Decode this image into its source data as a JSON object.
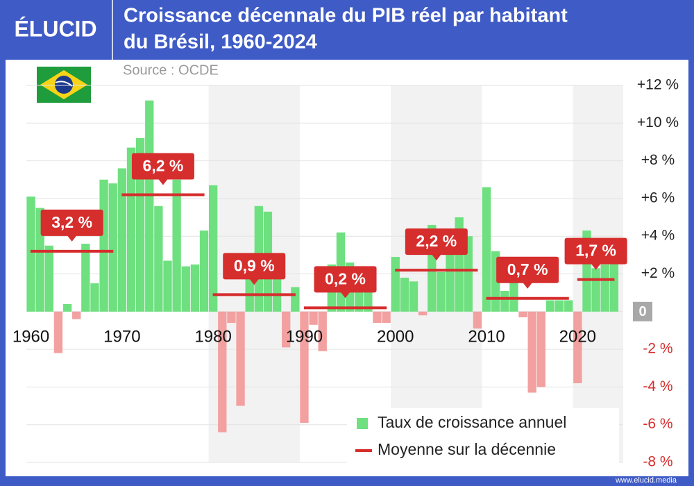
{
  "brand": "ÉLUCID",
  "footer": "www.elucid.media",
  "chart_data": {
    "type": "bar",
    "title": "Croissance décennale du PIB réel par habitant du Brésil, 1960-2024",
    "title_lines": [
      "Croissance décennale du PIB réel par habitant",
      "du Brésil, 1960-2024"
    ],
    "subtitle": "Source : OCDE",
    "xlim": [
      1959.5,
      2025
    ],
    "xticks": [
      1960,
      1970,
      1980,
      1990,
      2000,
      2010,
      2020
    ],
    "ylim": [
      -8,
      12
    ],
    "yticks": [
      {
        "value": -8,
        "label": "-8 %"
      },
      {
        "value": -6,
        "label": "-6 %"
      },
      {
        "value": -4,
        "label": "-4 %"
      },
      {
        "value": -2,
        "label": "-2 %"
      },
      0,
      {
        "value": 2,
        "label": "+2 %"
      },
      {
        "value": 4,
        "label": "+4 %"
      },
      {
        "value": 6,
        "label": "+6 %"
      },
      {
        "value": 8,
        "label": "+8 %"
      },
      {
        "value": 10,
        "label": "+10 %"
      },
      {
        "value": 12,
        "label": "+12 %"
      }
    ],
    "grid": true,
    "legend": "lower right",
    "series": [
      {
        "name": "Taux de croissance annuel",
        "color": "#6ee07f",
        "negative_color": "#f2a0a0",
        "x": [
          1960,
          1961,
          1962,
          1963,
          1964,
          1965,
          1966,
          1967,
          1968,
          1969,
          1970,
          1971,
          1972,
          1973,
          1974,
          1975,
          1976,
          1977,
          1978,
          1979,
          1980,
          1981,
          1982,
          1983,
          1984,
          1985,
          1986,
          1987,
          1988,
          1989,
          1990,
          1991,
          1992,
          1993,
          1994,
          1995,
          1996,
          1997,
          1998,
          1999,
          2000,
          2001,
          2002,
          2003,
          2004,
          2005,
          2006,
          2007,
          2008,
          2009,
          2010,
          2011,
          2012,
          2013,
          2014,
          2015,
          2016,
          2017,
          2018,
          2019,
          2020,
          2021,
          2022,
          2023,
          2024
        ],
        "values": [
          6.1,
          5.5,
          3.5,
          -2.2,
          0.4,
          -0.4,
          3.6,
          1.5,
          7.0,
          6.8,
          7.6,
          8.7,
          9.2,
          11.2,
          5.6,
          2.7,
          7.0,
          2.4,
          2.5,
          4.3,
          6.7,
          -6.4,
          -0.6,
          -5.0,
          3.1,
          5.6,
          5.3,
          2.1,
          -1.9,
          1.3,
          -5.9,
          -0.7,
          -2.1,
          2.5,
          4.2,
          2.6,
          1.4,
          1.9,
          -0.6,
          -0.6,
          2.9,
          1.8,
          1.6,
          -0.2,
          4.6,
          2.1,
          3.6,
          5.0,
          4.0,
          -0.9,
          6.6,
          3.2,
          1.1,
          2.0,
          -0.3,
          -4.3,
          -4.0,
          0.6,
          0.6,
          0.6,
          -3.8,
          4.3,
          2.3,
          2.5,
          3.0
        ]
      },
      {
        "name": "Moyenne sur la décennie",
        "color": "#d62d2d",
        "x": [
          1960,
          1970,
          1980,
          1990,
          2000,
          2010,
          2020
        ],
        "x_end": [
          1969,
          1979,
          1989,
          1999,
          2009,
          2019,
          2024
        ],
        "values": [
          3.2,
          6.2,
          0.9,
          0.2,
          2.2,
          0.7,
          1.7
        ],
        "value_labels": [
          "3,2 %",
          "6,2 %",
          "0,9 %",
          "0,2 %",
          "2,2 %",
          "0,7 %",
          "1,7 %"
        ]
      }
    ]
  }
}
